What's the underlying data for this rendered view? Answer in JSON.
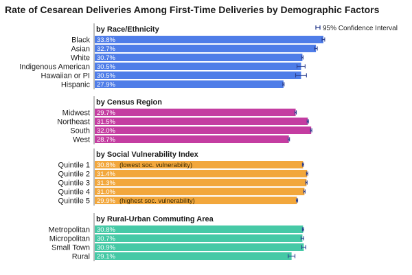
{
  "chart_data": {
    "type": "bar",
    "orientation": "horizontal",
    "title": "Rate of Cesarean Deliveries Among First-Time Deliveries by Demographic Factors",
    "legend": {
      "label": "95% Confidence Interval",
      "placement": "top-right"
    },
    "xlim": [
      0,
      35
    ],
    "groups": [
      {
        "title": "by Race/Ethnicity",
        "color": "#4f7de8",
        "bar_text_color": "#ffffff",
        "items": [
          {
            "category": "Black",
            "value": 33.8,
            "label": "33.8%",
            "ci": [
              33.6,
              34.0
            ]
          },
          {
            "category": "Asian",
            "value": 32.7,
            "label": "32.7%",
            "ci": [
              32.5,
              32.9
            ]
          },
          {
            "category": "White",
            "value": 30.7,
            "label": "30.7%",
            "ci": [
              30.6,
              30.8
            ]
          },
          {
            "category": "Indigenous American",
            "value": 30.5,
            "label": "30.5%",
            "ci": [
              29.9,
              31.1
            ]
          },
          {
            "category": "Hawaiian or PI",
            "value": 30.5,
            "label": "30.5%",
            "ci": [
              29.7,
              31.3
            ]
          },
          {
            "category": "Hispanic",
            "value": 27.9,
            "label": "27.9%",
            "ci": [
              27.8,
              28.0
            ]
          }
        ]
      },
      {
        "title": "by Census Region",
        "color": "#c43da1",
        "bar_text_color": "#ffffff",
        "items": [
          {
            "category": "Midwest",
            "value": 29.7,
            "label": "29.7%",
            "ci": [
              29.6,
              29.8
            ]
          },
          {
            "category": "Northeast",
            "value": 31.5,
            "label": "31.5%",
            "ci": [
              31.4,
              31.6
            ]
          },
          {
            "category": "South",
            "value": 32.0,
            "label": "32.0%",
            "ci": [
              31.9,
              32.1
            ]
          },
          {
            "category": "West",
            "value": 28.7,
            "label": "28.7%",
            "ci": [
              28.6,
              28.8
            ]
          }
        ]
      },
      {
        "title": "by Social Vulnerability Index",
        "color": "#f2a73c",
        "bar_text_color": "#ffffff",
        "items": [
          {
            "category": "Quintile 1",
            "value": 30.8,
            "label": "30.8%",
            "note": "(lowest soc. vulnerability)",
            "ci": [
              30.7,
              30.9
            ]
          },
          {
            "category": "Quintile 2",
            "value": 31.4,
            "label": "31.4%",
            "ci": [
              31.3,
              31.5
            ]
          },
          {
            "category": "Quintile 3",
            "value": 31.3,
            "label": "31.3%",
            "ci": [
              31.2,
              31.4
            ]
          },
          {
            "category": "Quintile 4",
            "value": 31.0,
            "label": "31.0%",
            "ci": [
              30.9,
              31.1
            ]
          },
          {
            "category": "Quintile 5",
            "value": 29.9,
            "label": "29.9%",
            "note": "(highest soc. vulnerability)",
            "ci": [
              29.8,
              30.0
            ]
          }
        ]
      },
      {
        "title": "by Rural-Urban Commuting Area",
        "color": "#46c9a6",
        "bar_text_color": "#ffffff",
        "items": [
          {
            "category": "Metropolitan",
            "value": 30.8,
            "label": "30.8%",
            "ci": [
              30.7,
              30.9
            ]
          },
          {
            "category": "Micropolitan",
            "value": 30.7,
            "label": "30.7%",
            "ci": [
              30.5,
              30.9
            ]
          },
          {
            "category": "Small Town",
            "value": 30.9,
            "label": "30.9%",
            "ci": [
              30.6,
              31.2
            ]
          },
          {
            "category": "Rural",
            "value": 29.1,
            "label": "29.1%",
            "ci": [
              28.6,
              29.6
            ]
          }
        ]
      }
    ]
  }
}
